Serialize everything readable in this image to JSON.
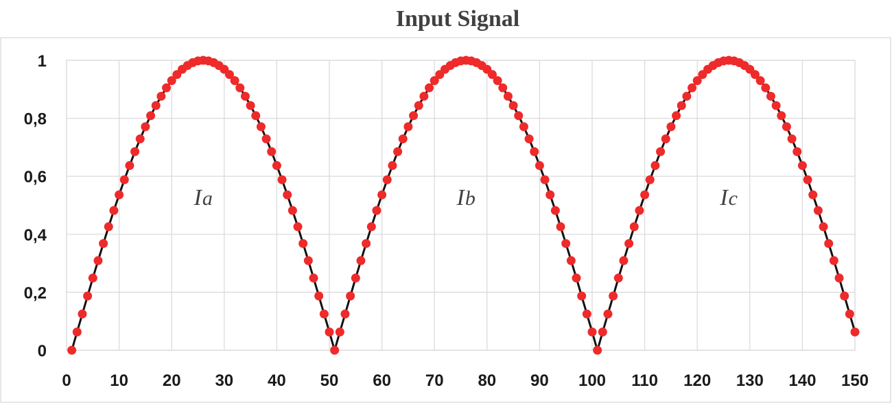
{
  "chart_data": {
    "type": "scatter",
    "title": "Input Signal",
    "xlabel": "",
    "ylabel": "",
    "xlim": [
      0,
      150
    ],
    "ylim": [
      0,
      1
    ],
    "x_ticks": [
      0,
      10,
      20,
      30,
      40,
      50,
      60,
      70,
      80,
      90,
      100,
      110,
      120,
      130,
      140,
      150
    ],
    "x_tick_labels": [
      "0",
      "10",
      "20",
      "30",
      "40",
      "50",
      "60",
      "70",
      "80",
      "90",
      "100",
      "110",
      "120",
      "130",
      "140",
      "150"
    ],
    "y_ticks": [
      0,
      0.2,
      0.4,
      0.6,
      0.8,
      1
    ],
    "y_tick_labels": [
      "0",
      "0,2",
      "0,4",
      "0,6",
      "0,8",
      "1"
    ],
    "grid": true,
    "legend": "none",
    "annotations": [
      {
        "text": "I",
        "sub": "a",
        "x": 26,
        "y": 0.53
      },
      {
        "text": "I",
        "sub": "b",
        "x": 76,
        "y": 0.53
      },
      {
        "text": "I",
        "sub": "c",
        "x": 126,
        "y": 0.53
      }
    ],
    "series": [
      {
        "marker_color": "#ee2a2a",
        "line_color": "#111111",
        "x": [
          1,
          2,
          3,
          4,
          5,
          6,
          7,
          8,
          9,
          10,
          11,
          12,
          13,
          14,
          15,
          16,
          17,
          18,
          19,
          20,
          21,
          22,
          23,
          24,
          25,
          26,
          27,
          28,
          29,
          30,
          31,
          32,
          33,
          34,
          35,
          36,
          37,
          38,
          39,
          40,
          41,
          42,
          43,
          44,
          45,
          46,
          47,
          48,
          49,
          50,
          51,
          52,
          53,
          54,
          55,
          56,
          57,
          58,
          59,
          60,
          61,
          62,
          63,
          64,
          65,
          66,
          67,
          68,
          69,
          70,
          71,
          72,
          73,
          74,
          75,
          76,
          77,
          78,
          79,
          80,
          81,
          82,
          83,
          84,
          85,
          86,
          87,
          88,
          89,
          90,
          91,
          92,
          93,
          94,
          95,
          96,
          97,
          98,
          99,
          100,
          101,
          102,
          103,
          104,
          105,
          106,
          107,
          108,
          109,
          110,
          111,
          112,
          113,
          114,
          115,
          116,
          117,
          118,
          119,
          120,
          121,
          122,
          123,
          124,
          125,
          126,
          127,
          128,
          129,
          130,
          131,
          132,
          133,
          134,
          135,
          136,
          137,
          138,
          139,
          140,
          141,
          142,
          143,
          144,
          145,
          146,
          147,
          148,
          149,
          150
        ],
        "y": [
          0,
          0.063,
          0.125,
          0.187,
          0.249,
          0.309,
          0.368,
          0.426,
          0.482,
          0.536,
          0.588,
          0.637,
          0.685,
          0.729,
          0.771,
          0.809,
          0.844,
          0.876,
          0.905,
          0.93,
          0.951,
          0.969,
          0.982,
          0.992,
          0.998,
          1,
          0.998,
          0.992,
          0.982,
          0.969,
          0.951,
          0.93,
          0.905,
          0.876,
          0.844,
          0.809,
          0.771,
          0.729,
          0.685,
          0.637,
          0.588,
          0.536,
          0.482,
          0.426,
          0.368,
          0.309,
          0.249,
          0.187,
          0.125,
          0.063,
          0,
          0.063,
          0.125,
          0.187,
          0.249,
          0.309,
          0.368,
          0.426,
          0.482,
          0.536,
          0.588,
          0.637,
          0.685,
          0.729,
          0.771,
          0.809,
          0.844,
          0.876,
          0.905,
          0.93,
          0.951,
          0.969,
          0.982,
          0.992,
          0.998,
          1,
          0.998,
          0.992,
          0.982,
          0.969,
          0.951,
          0.93,
          0.905,
          0.876,
          0.844,
          0.809,
          0.771,
          0.729,
          0.685,
          0.637,
          0.588,
          0.536,
          0.482,
          0.426,
          0.368,
          0.309,
          0.249,
          0.187,
          0.125,
          0.063,
          0,
          0.063,
          0.125,
          0.187,
          0.249,
          0.309,
          0.368,
          0.426,
          0.482,
          0.536,
          0.588,
          0.637,
          0.685,
          0.729,
          0.771,
          0.809,
          0.844,
          0.876,
          0.905,
          0.93,
          0.951,
          0.969,
          0.982,
          0.992,
          0.998,
          1,
          0.998,
          0.992,
          0.982,
          0.969,
          0.951,
          0.93,
          0.905,
          0.876,
          0.844,
          0.809,
          0.771,
          0.729,
          0.685,
          0.637,
          0.588,
          0.536,
          0.482,
          0.426,
          0.368,
          0.309,
          0.249,
          0.187,
          0.125,
          0.063
        ]
      }
    ]
  }
}
